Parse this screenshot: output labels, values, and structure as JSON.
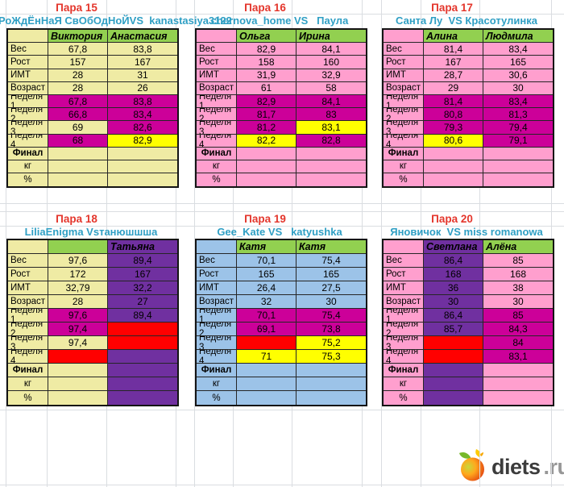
{
  "theme": {
    "grid_line": "#dadde1",
    "title_red": "#e4362c",
    "subtitle_cyan": "#2f9fc4",
    "cell_text": "#000000",
    "colors": {
      "green": "#92d050",
      "magenta": "#cc0099",
      "yellow": "#ffff00",
      "red": "#ff0000",
      "purple": "#7030a0",
      "pink": "#ff9fce",
      "pale_yellow": "#efeba4",
      "blue": "#9cc3e8"
    }
  },
  "pairs": [
    {
      "title": "Пара 15",
      "subtitle": "РоЖдЁнНаЯ СвОбОдНоЙVS  kanastasiya3122",
      "base": [
        "pale_yellow",
        "pale_yellow",
        "pale_yellow"
      ],
      "header": [
        {
          "v": "Виктория",
          "bg": "green"
        },
        {
          "v": "Анастасия",
          "bg": "green"
        }
      ],
      "rows": [
        {
          "label": "Вес",
          "cells": [
            {
              "v": "67,8"
            },
            {
              "v": "83,8"
            }
          ]
        },
        {
          "label": "Рост",
          "cells": [
            {
              "v": "157"
            },
            {
              "v": "167"
            }
          ]
        },
        {
          "label": "ИМТ",
          "cells": [
            {
              "v": "28"
            },
            {
              "v": "31"
            }
          ]
        },
        {
          "label": "Возраст",
          "cells": [
            {
              "v": "28"
            },
            {
              "v": "26"
            }
          ]
        },
        {
          "label": "Неделя 1",
          "cells": [
            {
              "v": "67,8",
              "bg": "magenta"
            },
            {
              "v": "83,8",
              "bg": "magenta"
            }
          ]
        },
        {
          "label": "Неделя 2",
          "cells": [
            {
              "v": "66,8",
              "bg": "magenta"
            },
            {
              "v": "83,4",
              "bg": "magenta"
            }
          ]
        },
        {
          "label": "Неделя 3",
          "cells": [
            {
              "v": "69"
            },
            {
              "v": "82,6",
              "bg": "magenta"
            }
          ]
        },
        {
          "label": "Неделя 4",
          "cells": [
            {
              "v": "68",
              "bg": "magenta"
            },
            {
              "v": "82,9",
              "bg": "yellow"
            }
          ]
        },
        {
          "label": "Финал",
          "bold": true,
          "center": true,
          "cells": [
            {},
            {}
          ]
        },
        {
          "label": "кг",
          "center": true,
          "cells": [
            {},
            {}
          ]
        },
        {
          "label": "%",
          "center": true,
          "cells": [
            {},
            {}
          ]
        }
      ]
    },
    {
      "title": "Пара 16",
      "subtitle": "chernova_home VS   Паула",
      "base": [
        "pink",
        "pink",
        "pink"
      ],
      "header": [
        {
          "v": "Ольга",
          "bg": "green"
        },
        {
          "v": "Ирина",
          "bg": "green"
        }
      ],
      "rows": [
        {
          "label": "Вес",
          "cells": [
            {
              "v": "82,9"
            },
            {
              "v": "84,1"
            }
          ]
        },
        {
          "label": "Рост",
          "cells": [
            {
              "v": "158"
            },
            {
              "v": "160"
            }
          ]
        },
        {
          "label": "ИМТ",
          "cells": [
            {
              "v": "31,9"
            },
            {
              "v": "32,9"
            }
          ]
        },
        {
          "label": "Возраст",
          "cells": [
            {
              "v": "61"
            },
            {
              "v": "58"
            }
          ]
        },
        {
          "label": "Неделя 1",
          "cells": [
            {
              "v": "82,9",
              "bg": "magenta"
            },
            {
              "v": "84,1",
              "bg": "magenta"
            }
          ]
        },
        {
          "label": "Неделя 2",
          "cells": [
            {
              "v": "81,7",
              "bg": "magenta"
            },
            {
              "v": "83",
              "bg": "magenta"
            }
          ]
        },
        {
          "label": "Неделя 3",
          "cells": [
            {
              "v": "81,2",
              "bg": "magenta"
            },
            {
              "v": "83,1",
              "bg": "yellow"
            }
          ]
        },
        {
          "label": "Неделя 4",
          "cells": [
            {
              "v": "82,2",
              "bg": "yellow"
            },
            {
              "v": "82,8",
              "bg": "magenta"
            }
          ]
        },
        {
          "label": "Финал",
          "bold": true,
          "center": true,
          "cells": [
            {},
            {}
          ]
        },
        {
          "label": "кг",
          "center": true,
          "cells": [
            {},
            {}
          ]
        },
        {
          "label": "%",
          "center": true,
          "cells": [
            {},
            {}
          ]
        }
      ]
    },
    {
      "title": "Пара 17",
      "subtitle": "Санта Лу  VS Красотулинка",
      "base": [
        "pink",
        "pink",
        "pink"
      ],
      "header": [
        {
          "v": "Алина",
          "bg": "green"
        },
        {
          "v": "Людмила",
          "bg": "green"
        }
      ],
      "rows": [
        {
          "label": "Вес",
          "cells": [
            {
              "v": "81,4"
            },
            {
              "v": "83,4"
            }
          ]
        },
        {
          "label": "Рост",
          "cells": [
            {
              "v": "167"
            },
            {
              "v": "165"
            }
          ]
        },
        {
          "label": "ИМТ",
          "cells": [
            {
              "v": "28,7"
            },
            {
              "v": "30,6"
            }
          ]
        },
        {
          "label": "Возраст",
          "cells": [
            {
              "v": "29"
            },
            {
              "v": "30"
            }
          ]
        },
        {
          "label": "Неделя 1",
          "cells": [
            {
              "v": "81,4",
              "bg": "magenta"
            },
            {
              "v": "83,4",
              "bg": "magenta"
            }
          ]
        },
        {
          "label": "Неделя 2",
          "cells": [
            {
              "v": "80,8",
              "bg": "magenta"
            },
            {
              "v": "81,3",
              "bg": "magenta"
            }
          ]
        },
        {
          "label": "Неделя 3",
          "cells": [
            {
              "v": "79,3",
              "bg": "magenta"
            },
            {
              "v": "79,4",
              "bg": "magenta"
            }
          ]
        },
        {
          "label": "Неделя 4",
          "cells": [
            {
              "v": "80,6",
              "bg": "yellow"
            },
            {
              "v": "79,1",
              "bg": "magenta"
            }
          ]
        },
        {
          "label": "Финал",
          "bold": true,
          "center": true,
          "cells": [
            {},
            {}
          ]
        },
        {
          "label": "кг",
          "center": true,
          "cells": [
            {},
            {}
          ]
        },
        {
          "label": "%",
          "center": true,
          "cells": [
            {},
            {}
          ]
        }
      ]
    },
    {
      "title": "Пара 18",
      "subtitle": "LiliaEnigma Vsтанюшшша",
      "base": [
        "pale_yellow",
        "pale_yellow",
        "purple"
      ],
      "header": [
        {
          "v": "",
          "bg": "green"
        },
        {
          "v": "Татьяна",
          "bg": "purple"
        }
      ],
      "rows": [
        {
          "label": "Вес",
          "cells": [
            {
              "v": "97,6"
            },
            {
              "v": "89,4"
            }
          ]
        },
        {
          "label": "Рост",
          "cells": [
            {
              "v": "172"
            },
            {
              "v": "167"
            }
          ]
        },
        {
          "label": "ИМТ",
          "cells": [
            {
              "v": "32,79"
            },
            {
              "v": "32,2"
            }
          ]
        },
        {
          "label": "Возраст",
          "cells": [
            {
              "v": "28"
            },
            {
              "v": "27"
            }
          ]
        },
        {
          "label": "Неделя 1",
          "cells": [
            {
              "v": "97,6",
              "bg": "magenta"
            },
            {
              "v": "89,4"
            }
          ]
        },
        {
          "label": "Неделя 2",
          "cells": [
            {
              "v": "97,4",
              "bg": "magenta"
            },
            {
              "bg": "red"
            }
          ]
        },
        {
          "label": "Неделя 3",
          "cells": [
            {
              "v": "97,4"
            },
            {
              "bg": "red"
            }
          ]
        },
        {
          "label": "Неделя 4",
          "cells": [
            {
              "bg": "red"
            },
            {}
          ]
        },
        {
          "label": "Финал",
          "bold": true,
          "center": true,
          "cells": [
            {},
            {}
          ]
        },
        {
          "label": "кг",
          "center": true,
          "cells": [
            {},
            {}
          ]
        },
        {
          "label": "%",
          "center": true,
          "cells": [
            {},
            {}
          ]
        }
      ]
    },
    {
      "title": "Пара 19",
      "subtitle": "Gee_Kate VS   katyushka",
      "base": [
        "blue",
        "blue",
        "blue"
      ],
      "header": [
        {
          "v": "Катя",
          "bg": "green"
        },
        {
          "v": "Катя",
          "bg": "green"
        }
      ],
      "rows": [
        {
          "label": "Вес",
          "cells": [
            {
              "v": "70,1"
            },
            {
              "v": "75,4"
            }
          ]
        },
        {
          "label": "Рост",
          "cells": [
            {
              "v": "165"
            },
            {
              "v": "165"
            }
          ]
        },
        {
          "label": "ИМТ",
          "cells": [
            {
              "v": "26,4"
            },
            {
              "v": "27,5"
            }
          ]
        },
        {
          "label": "Возраст",
          "cells": [
            {
              "v": "32"
            },
            {
              "v": "30"
            }
          ]
        },
        {
          "label": "Неделя 1",
          "cells": [
            {
              "v": "70,1",
              "bg": "magenta"
            },
            {
              "v": "75,4",
              "bg": "magenta"
            }
          ]
        },
        {
          "label": "Неделя 2",
          "cells": [
            {
              "v": "69,1",
              "bg": "magenta"
            },
            {
              "v": "73,8",
              "bg": "magenta"
            }
          ]
        },
        {
          "label": "Неделя 3",
          "cells": [
            {
              "bg": "red"
            },
            {
              "v": "75,2",
              "bg": "yellow"
            }
          ]
        },
        {
          "label": "Неделя 4",
          "cells": [
            {
              "v": "71",
              "bg": "yellow"
            },
            {
              "v": "75,3",
              "bg": "yellow"
            }
          ]
        },
        {
          "label": "Финал",
          "bold": true,
          "center": true,
          "cells": [
            {},
            {}
          ]
        },
        {
          "label": "кг",
          "center": true,
          "cells": [
            {},
            {}
          ]
        },
        {
          "label": "%",
          "center": true,
          "cells": [
            {},
            {}
          ]
        }
      ]
    },
    {
      "title": "Пара 20",
      "subtitle": "Яновичок  VS miss romanowa",
      "base": [
        "pink",
        "purple",
        "pink"
      ],
      "header": [
        {
          "v": "Светлана",
          "bg": "purple"
        },
        {
          "v": "Алёна",
          "bg": "green"
        }
      ],
      "rows": [
        {
          "label": "Вес",
          "cells": [
            {
              "v": "86,4"
            },
            {
              "v": "85"
            }
          ]
        },
        {
          "label": "Рост",
          "cells": [
            {
              "v": "168"
            },
            {
              "v": "168"
            }
          ]
        },
        {
          "label": "ИМТ",
          "cells": [
            {
              "v": "36"
            },
            {
              "v": "38"
            }
          ]
        },
        {
          "label": "Возраст",
          "cells": [
            {
              "v": "30"
            },
            {
              "v": "30"
            }
          ]
        },
        {
          "label": "Неделя 1",
          "cells": [
            {
              "v": "86,4"
            },
            {
              "v": "85",
              "bg": "magenta"
            }
          ]
        },
        {
          "label": "Неделя 2",
          "cells": [
            {
              "v": "85,7"
            },
            {
              "v": "84,3",
              "bg": "magenta"
            }
          ]
        },
        {
          "label": "Неделя 3",
          "cells": [
            {
              "bg": "red"
            },
            {
              "v": "84",
              "bg": "magenta"
            }
          ]
        },
        {
          "label": "Неделя 4",
          "cells": [
            {
              "bg": "red"
            },
            {
              "v": "83,1",
              "bg": "magenta"
            }
          ]
        },
        {
          "label": "Финал",
          "bold": true,
          "center": true,
          "cells": [
            {},
            {}
          ]
        },
        {
          "label": "кг",
          "center": true,
          "cells": [
            {},
            {}
          ]
        },
        {
          "label": "%",
          "center": true,
          "cells": [
            {},
            {}
          ]
        }
      ]
    }
  ],
  "logo": {
    "brand": "diets",
    "tld": ".ru"
  }
}
